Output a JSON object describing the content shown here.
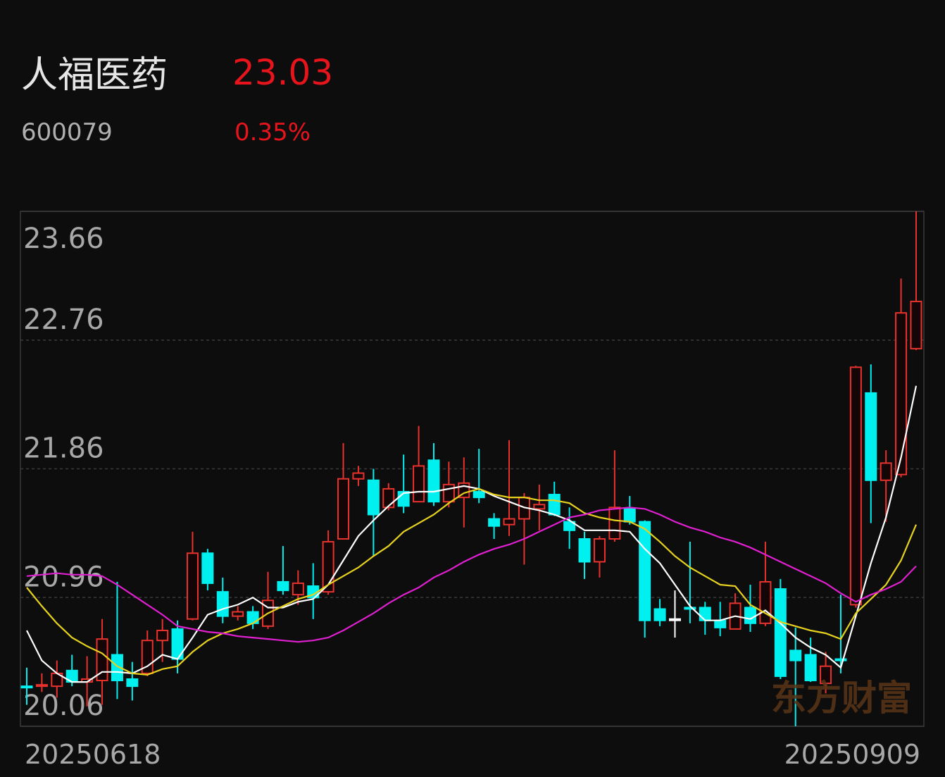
{
  "header": {
    "title": "人福医药",
    "price": "23.03",
    "code": "600079",
    "change": "0.35%"
  },
  "watermark": "东方财富",
  "chart_data": {
    "type": "candlestick",
    "x": [
      "20250618",
      null,
      null,
      null,
      null,
      null,
      null,
      null,
      null,
      null,
      null,
      null,
      null,
      null,
      null,
      null,
      null,
      null,
      null,
      null,
      null,
      null,
      null,
      null,
      null,
      null,
      null,
      null,
      null,
      null,
      null,
      null,
      null,
      null,
      null,
      null,
      null,
      null,
      null,
      null,
      null,
      null,
      null,
      null,
      null,
      null,
      null,
      null,
      null,
      null,
      null,
      null,
      null,
      null,
      null,
      null,
      null,
      null,
      null,
      "20250909"
    ],
    "open": [
      20.34,
      20.34,
      20.34,
      20.45,
      20.37,
      20.38,
      20.56,
      20.39,
      20.43,
      20.66,
      20.74,
      20.81,
      21.27,
      21.0,
      20.83,
      20.86,
      20.76,
      21.07,
      20.98,
      21.04,
      21.0,
      21.37,
      21.79,
      21.78,
      21.59,
      21.7,
      21.63,
      21.92,
      21.63,
      21.66,
      21.7,
      21.51,
      21.47,
      21.51,
      21.58,
      21.68,
      21.49,
      21.37,
      21.21,
      21.37,
      21.58,
      21.49,
      20.88,
      20.81,
      20.89,
      20.89,
      20.8,
      20.74,
      20.89,
      20.78,
      21.02,
      20.59,
      20.56,
      20.36,
      20.53,
      20.91,
      22.39,
      21.78,
      21.82,
      22.7
    ],
    "high": [
      20.47,
      20.43,
      20.52,
      20.56,
      20.55,
      20.81,
      21.07,
      20.51,
      20.73,
      20.81,
      20.8,
      21.42,
      21.3,
      21.1,
      20.9,
      20.9,
      21.14,
      21.32,
      21.15,
      21.2,
      21.43,
      22.04,
      21.88,
      21.86,
      21.76,
      21.96,
      22.16,
      22.04,
      21.91,
      21.94,
      22.0,
      21.55,
      22.06,
      21.69,
      21.75,
      21.77,
      21.59,
      21.42,
      21.39,
      21.99,
      21.67,
      21.5,
      20.95,
      21.01,
      21.35,
      20.93,
      20.93,
      20.99,
      21.05,
      21.35,
      21.09,
      20.75,
      20.68,
      20.58,
      20.98,
      22.58,
      22.59,
      21.99,
      23.19,
      23.66
    ],
    "low": [
      20.21,
      20.3,
      20.26,
      20.34,
      20.2,
      20.21,
      20.25,
      20.24,
      20.41,
      20.51,
      20.43,
      20.8,
      21.01,
      20.78,
      20.8,
      20.74,
      20.74,
      20.98,
      20.91,
      20.81,
      20.98,
      21.37,
      21.74,
      21.25,
      21.57,
      21.55,
      21.63,
      21.6,
      21.59,
      21.45,
      21.62,
      21.37,
      21.39,
      21.19,
      21.43,
      21.53,
      21.3,
      21.09,
      21.1,
      21.35,
      21.47,
      20.68,
      20.76,
      20.68,
      20.78,
      20.7,
      20.69,
      20.74,
      20.72,
      20.76,
      20.39,
      20.06,
      20.37,
      20.29,
      20.43,
      20.89,
      21.48,
      21.49,
      21.8,
      22.69
    ],
    "close": [
      20.33,
      20.35,
      20.43,
      20.37,
      20.39,
      20.67,
      20.38,
      20.34,
      20.66,
      20.73,
      20.53,
      21.27,
      21.06,
      20.83,
      20.86,
      20.78,
      20.94,
      21.01,
      21.06,
      20.96,
      21.35,
      21.79,
      21.83,
      21.54,
      21.72,
      21.6,
      21.88,
      21.63,
      21.75,
      21.76,
      21.66,
      21.46,
      21.51,
      21.66,
      21.61,
      21.54,
      21.43,
      21.21,
      21.37,
      21.59,
      21.49,
      20.8,
      20.8,
      20.81,
      20.88,
      20.8,
      20.75,
      20.92,
      20.78,
      21.07,
      20.41,
      20.52,
      20.38,
      20.48,
      20.52,
      22.57,
      21.78,
      21.9,
      22.95,
      23.03
    ],
    "up_color": "#e8322e",
    "down_color": "#00f0f0",
    "flat_color": "#ffffff",
    "lines": [
      {
        "color": "#ffffff",
        "values": [
          20.73,
          20.52,
          20.43,
          20.37,
          20.37,
          20.44,
          20.44,
          20.43,
          20.48,
          20.56,
          20.53,
          20.68,
          20.84,
          20.88,
          20.91,
          20.96,
          20.89,
          20.89,
          20.93,
          20.95,
          21.05,
          21.22,
          21.39,
          21.5,
          21.6,
          21.69,
          21.7,
          21.7,
          21.72,
          21.74,
          21.72,
          21.67,
          21.63,
          21.59,
          21.57,
          21.54,
          21.5,
          21.43,
          21.43,
          21.43,
          21.42,
          21.3,
          21.2,
          21.05,
          20.9,
          20.8,
          20.8,
          20.83,
          20.81,
          20.87,
          20.78,
          20.68,
          20.61,
          20.56,
          20.47,
          20.83,
          21.2,
          21.52,
          21.94,
          22.44
        ]
      },
      {
        "color": "#e6d21e",
        "values": [
          21.03,
          20.9,
          20.78,
          20.68,
          20.62,
          20.57,
          20.48,
          20.43,
          20.42,
          20.46,
          20.48,
          20.58,
          20.66,
          20.71,
          20.74,
          20.78,
          20.85,
          20.9,
          20.95,
          20.98,
          21.05,
          21.11,
          21.17,
          21.25,
          21.32,
          21.42,
          21.48,
          21.54,
          21.62,
          21.69,
          21.72,
          21.68,
          21.66,
          21.66,
          21.64,
          21.64,
          21.62,
          21.55,
          21.52,
          21.5,
          21.49,
          21.44,
          21.35,
          21.25,
          21.17,
          21.11,
          21.05,
          21.04,
          20.91,
          20.85,
          20.79,
          20.76,
          20.73,
          20.71,
          20.67,
          20.85,
          20.95,
          21.05,
          21.22,
          21.47
        ]
      },
      {
        "color": "#e020d0",
        "values": [
          21.11,
          21.12,
          21.13,
          21.12,
          21.12,
          21.11,
          21.05,
          20.98,
          20.91,
          20.84,
          20.76,
          20.74,
          20.72,
          20.71,
          20.69,
          20.68,
          20.67,
          20.66,
          20.65,
          20.66,
          20.68,
          20.73,
          20.79,
          20.85,
          20.92,
          20.98,
          21.03,
          21.1,
          21.15,
          21.21,
          21.26,
          21.3,
          21.33,
          21.37,
          21.42,
          21.47,
          21.52,
          21.54,
          21.57,
          21.58,
          21.59,
          21.58,
          21.54,
          21.49,
          21.45,
          21.42,
          21.38,
          21.35,
          21.31,
          21.26,
          21.21,
          21.16,
          21.11,
          21.06,
          20.99,
          20.93,
          20.98,
          21.02,
          21.07,
          21.18
        ]
      }
    ],
    "ylim": [
      20.06,
      23.66
    ],
    "yticks": [
      23.66,
      22.76,
      21.86,
      20.96,
      20.06
    ],
    "grid": true
  }
}
